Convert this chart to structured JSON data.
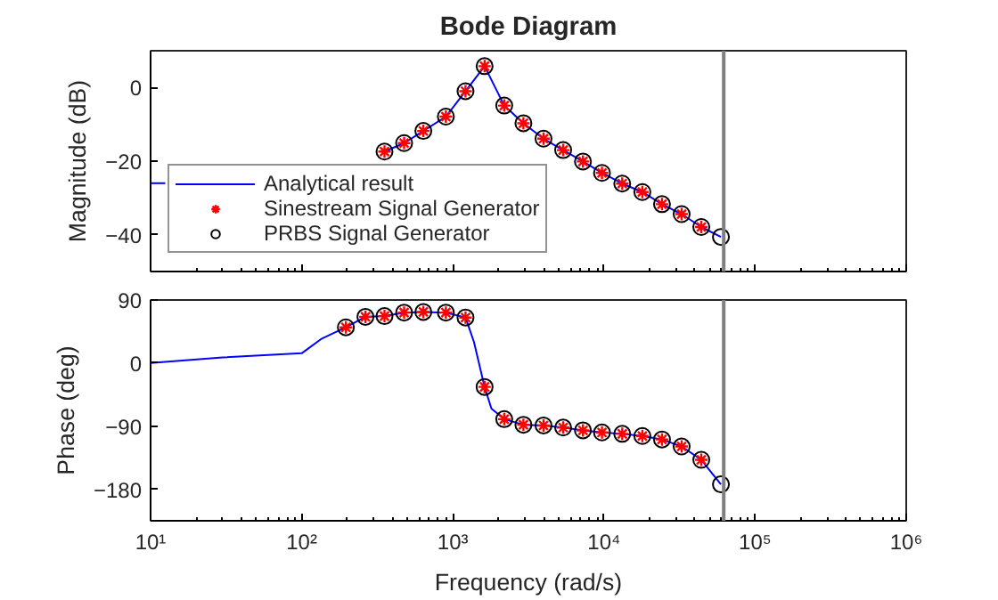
{
  "chart_data": [
    {
      "type": "scatter",
      "title": "Bode Diagram",
      "ylabel": "Magnitude (dB)",
      "x": [
        353,
        476,
        638,
        899,
        1213,
        1622,
        2188,
        2931,
        3981,
        5370,
        7261,
        9705,
        13210,
        17950,
        24210,
        32660,
        44060,
        59430
      ],
      "series": [
        {
          "type": "line",
          "color": "#0000ff",
          "marker": "none",
          "line_style": "solid",
          "x": [
            10,
            12.5
          ],
          "values": [
            -26,
            -26
          ]
        },
        {
          "name": "Analytical result",
          "type": "line",
          "color": "#0000ff",
          "marker": "none",
          "line_style": "solid",
          "x": [
            353,
            476,
            638,
            899,
            1213,
            1622,
            2188,
            2931,
            3981,
            5370,
            7261,
            9705,
            13210,
            17950,
            24210,
            32660,
            44060,
            59430
          ],
          "values": [
            -17.4,
            -15.1,
            -11.8,
            -7.9,
            -1.0,
            5.8,
            -4.9,
            -9.7,
            -13.9,
            -17.0,
            -20.1,
            -23.2,
            -26.1,
            -28.4,
            -31.7,
            -34.4,
            -37.9,
            -40.6
          ]
        },
        {
          "name": "Sinestream Signal Generator",
          "color": "#ff0000",
          "marker": "cross",
          "values": [
            -17.4,
            -15.1,
            -11.8,
            -7.9,
            -1.0,
            5.8,
            -4.9,
            -9.7,
            -13.9,
            -17.0,
            -20.1,
            -23.2,
            -26.1,
            -28.4,
            -31.7,
            -34.4,
            -37.9,
            null
          ]
        },
        {
          "name": "PRBS Signal Generator",
          "color": "#000000",
          "marker": "circle",
          "values": [
            -17.4,
            -15.1,
            -11.8,
            -7.9,
            -1.0,
            5.8,
            -4.9,
            -9.7,
            -13.9,
            -17.0,
            -20.1,
            -23.2,
            -26.1,
            -28.4,
            -31.7,
            -34.4,
            -37.9,
            -40.6
          ]
        }
      ],
      "log": "x",
      "xlim": [
        10,
        1000000
      ],
      "xticks": [
        {
          "value": 10,
          "label": null
        },
        {
          "value": 100,
          "label": null
        },
        {
          "value": 1000,
          "label": null
        },
        {
          "value": 10000,
          "label": null
        },
        {
          "value": 100000,
          "label": null
        },
        {
          "value": 1000000,
          "label": null
        }
      ],
      "ylim": [
        -50,
        10
      ],
      "yticks": [
        -40,
        -20,
        0
      ],
      "tick_labels": "y",
      "grid": false,
      "legend": "bottom left",
      "ref_lines": [
        {
          "axis": "x",
          "value": 62000,
          "color": "#808080"
        }
      ]
    },
    {
      "type": "scatter",
      "xlabel": "Frequency (rad/s)",
      "ylabel": "Phase (deg)",
      "x": [
        196,
        264,
        353,
        476,
        638,
        899,
        1213,
        1622,
        2188,
        2931,
        3981,
        5370,
        7261,
        9705,
        13210,
        17950,
        24210,
        32660,
        44060,
        59430
      ],
      "series": [
        {
          "type": "line",
          "color": "#0000ff",
          "marker": "none",
          "line_style": "solid",
          "x": [
            10,
            30,
            100,
            136,
            196,
            264,
            353,
            476,
            638,
            899,
            1213,
            1380,
            1622,
            1800,
            2188,
            2931,
            3981,
            5370,
            7261,
            9705,
            13210,
            17950,
            24210,
            32660,
            44060,
            59430
          ],
          "values": [
            0,
            8,
            14,
            35,
            51,
            66,
            67,
            72,
            73,
            72,
            65,
            30,
            -34,
            -65,
            -80,
            -88,
            -89,
            -92,
            -96,
            -99,
            -101,
            -104,
            -109,
            -119,
            -138,
            -173
          ]
        },
        {
          "color": "#ff0000",
          "marker": "cross",
          "values": [
            51,
            66,
            67,
            72,
            73,
            72,
            65,
            -34,
            -80,
            -88,
            -89,
            -92,
            -96,
            -99,
            -101,
            -104,
            -109,
            -119,
            -138,
            null
          ]
        },
        {
          "color": "#000000",
          "marker": "circle",
          "values": [
            51,
            66,
            67,
            72,
            73,
            72,
            65,
            -34,
            -80,
            -88,
            -89,
            -92,
            -96,
            -99,
            -101,
            -104,
            -109,
            -119,
            -138,
            -173
          ]
        }
      ],
      "log": "x",
      "xlim": [
        10,
        1000000
      ],
      "xticks": [
        {
          "value": 10,
          "label": "10¹"
        },
        {
          "value": 100,
          "label": "10²"
        },
        {
          "value": 1000,
          "label": "10³"
        },
        {
          "value": 10000,
          "label": "10⁴"
        },
        {
          "value": 100000,
          "label": "10⁵"
        },
        {
          "value": 1000000,
          "label": "10⁶"
        }
      ],
      "ylim": [
        -225,
        90
      ],
      "yticks": [
        -180,
        -90,
        0,
        90
      ],
      "grid": false,
      "legend": false,
      "ref_lines": [
        {
          "axis": "x",
          "value": 62000,
          "color": "#808080"
        }
      ]
    }
  ]
}
